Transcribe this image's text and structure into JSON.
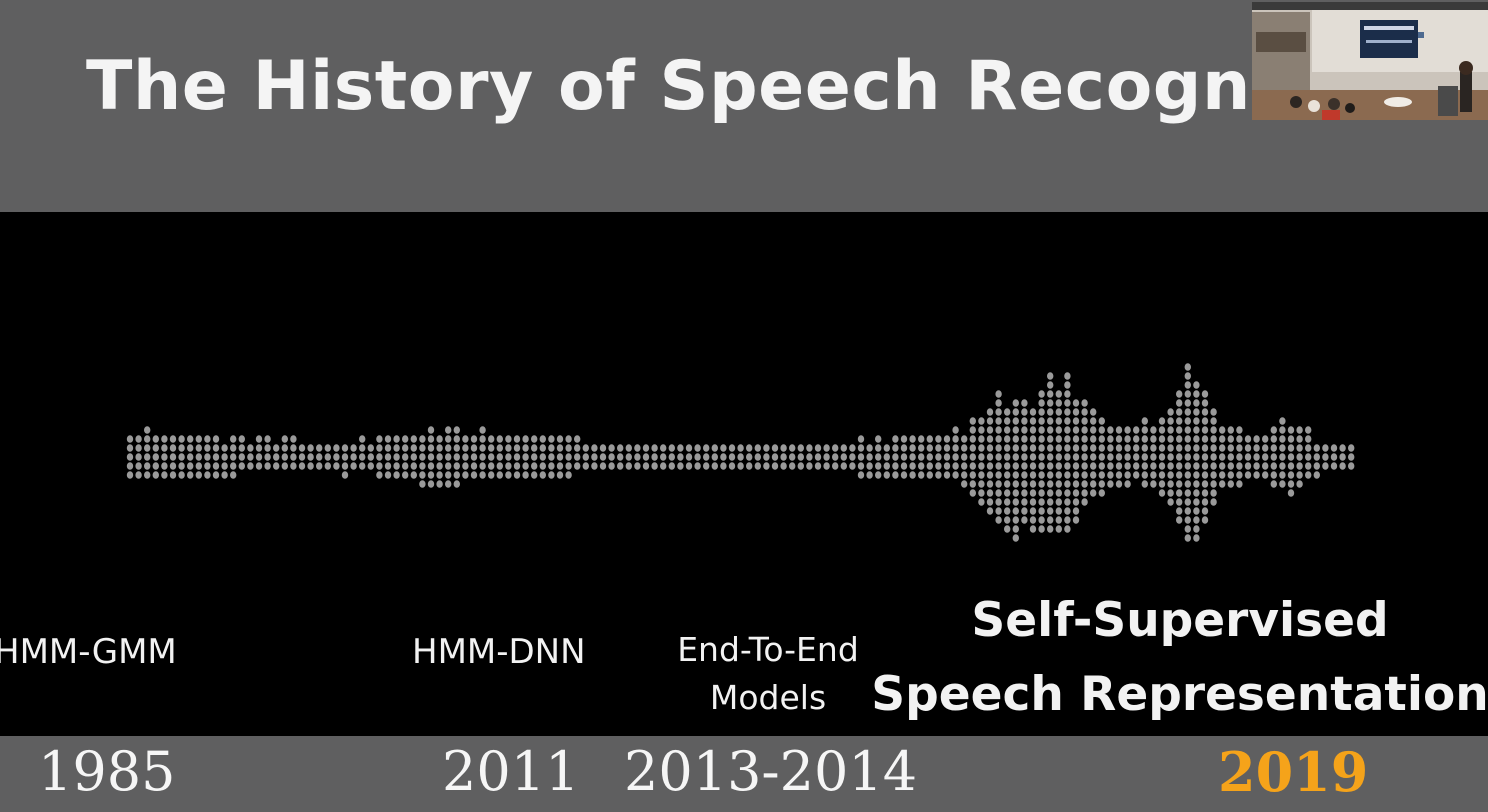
{
  "slide": {
    "title": "The History of Speech Recogni",
    "eras": {
      "hmm_gmm": "HMM-GMM",
      "hmm_dnn": "HMM-DNN",
      "end_to_end_line1": "End-To-End",
      "end_to_end_line2": "Models",
      "self_supervised_line1": "Self-Supervised",
      "self_supervised_line2": "Speech Representation"
    },
    "years": {
      "y1985": "1985",
      "y2011": "2011",
      "y2013": "2013-2014",
      "y2019": "2019"
    }
  },
  "colors": {
    "band_gray": "#5f5f60",
    "stage_black": "#000000",
    "text_white": "#f4f4f4",
    "highlight_orange": "#f5a31a",
    "waveform_gray": "#9a9a9a"
  },
  "icons": {
    "waveform": "audio-waveform-graphic",
    "speaker_video": "speaker-webcam-thumbnail"
  }
}
